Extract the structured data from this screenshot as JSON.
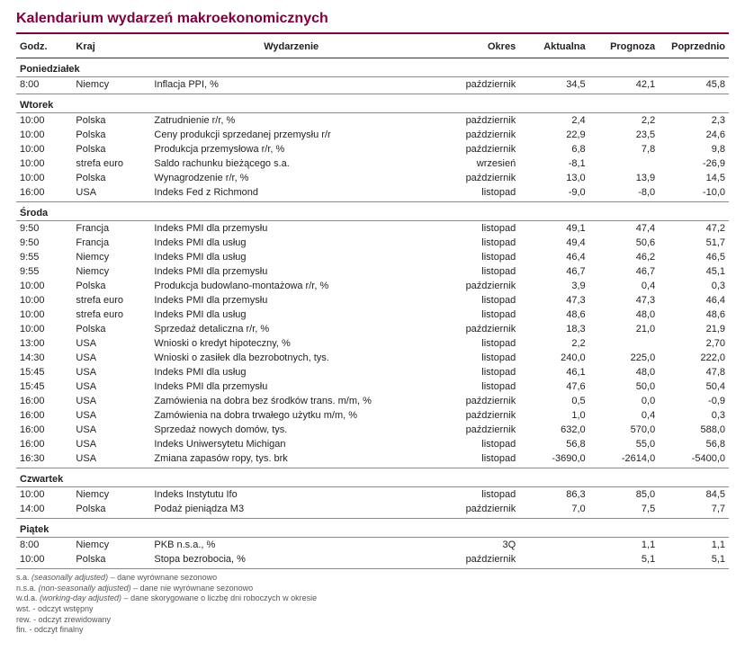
{
  "title": "Kalendarium wydarzeń makroekonomicznych",
  "headers": {
    "hour": "Godz.",
    "country": "Kraj",
    "event": "Wydarzenie",
    "period": "Okres",
    "actual": "Aktualna",
    "forecast": "Prognoza",
    "previous": "Poprzednio"
  },
  "days": [
    {
      "name": "Poniedziałek",
      "rows": [
        {
          "h": "8:00",
          "c": "Niemcy",
          "e": "Inflacja PPI, %",
          "p": "październik",
          "a": "34,5",
          "f": "42,1",
          "pr": "45,8"
        }
      ]
    },
    {
      "name": "Wtorek",
      "rows": [
        {
          "h": "10:00",
          "c": "Polska",
          "e": "Zatrudnienie r/r, %",
          "p": "październik",
          "a": "2,4",
          "f": "2,2",
          "pr": "2,3"
        },
        {
          "h": "10:00",
          "c": "Polska",
          "e": "Ceny produkcji sprzedanej przemysłu r/r",
          "p": "październik",
          "a": "22,9",
          "f": "23,5",
          "pr": "24,6"
        },
        {
          "h": "10:00",
          "c": "Polska",
          "e": "Produkcja przemysłowa r/r, %",
          "p": "październik",
          "a": "6,8",
          "f": "7,8",
          "pr": "9,8"
        },
        {
          "h": "10:00",
          "c": "strefa euro",
          "e": "Saldo rachunku bieżącego s.a.",
          "p": "wrzesień",
          "a": "-8,1",
          "f": "",
          "pr": "-26,9"
        },
        {
          "h": "10:00",
          "c": "Polska",
          "e": "Wynagrodzenie r/r, %",
          "p": "październik",
          "a": "13,0",
          "f": "13,9",
          "pr": "14,5"
        },
        {
          "h": "16:00",
          "c": "USA",
          "e": "Indeks Fed z Richmond",
          "p": "listopad",
          "a": "-9,0",
          "f": "-8,0",
          "pr": "-10,0"
        }
      ]
    },
    {
      "name": "Środa",
      "rows": [
        {
          "h": "9:50",
          "c": "Francja",
          "e": "Indeks PMI dla przemysłu",
          "p": "listopad",
          "a": "49,1",
          "f": "47,4",
          "pr": "47,2"
        },
        {
          "h": "9:50",
          "c": "Francja",
          "e": "Indeks PMI dla usług",
          "p": "listopad",
          "a": "49,4",
          "f": "50,6",
          "pr": "51,7"
        },
        {
          "h": "9:55",
          "c": "Niemcy",
          "e": "Indeks PMI dla usług",
          "p": "listopad",
          "a": "46,4",
          "f": "46,2",
          "pr": "46,5"
        },
        {
          "h": "9:55",
          "c": "Niemcy",
          "e": "Indeks PMI dla przemysłu",
          "p": "listopad",
          "a": "46,7",
          "f": "46,7",
          "pr": "45,1"
        },
        {
          "h": "10:00",
          "c": "Polska",
          "e": "Produkcja budowlano-montażowa r/r, %",
          "p": "październik",
          "a": "3,9",
          "f": "0,4",
          "pr": "0,3"
        },
        {
          "h": "10:00",
          "c": "strefa euro",
          "e": "Indeks PMI dla przemysłu",
          "p": "listopad",
          "a": "47,3",
          "f": "47,3",
          "pr": "46,4"
        },
        {
          "h": "10:00",
          "c": "strefa euro",
          "e": "Indeks PMI dla usług",
          "p": "listopad",
          "a": "48,6",
          "f": "48,0",
          "pr": "48,6"
        },
        {
          "h": "10:00",
          "c": "Polska",
          "e": "Sprzedaż detaliczna r/r, %",
          "p": "październik",
          "a": "18,3",
          "f": "21,0",
          "pr": "21,9"
        },
        {
          "h": "13:00",
          "c": "USA",
          "e": "Wnioski o kredyt hipoteczny, %",
          "p": "listopad",
          "a": "2,2",
          "f": "",
          "pr": "2,70"
        },
        {
          "h": "14:30",
          "c": "USA",
          "e": "Wnioski o zasiłek dla bezrobotnych, tys.",
          "p": "listopad",
          "a": "240,0",
          "f": "225,0",
          "pr": "222,0"
        },
        {
          "h": "15:45",
          "c": "USA",
          "e": "Indeks PMI dla usług",
          "p": "listopad",
          "a": "46,1",
          "f": "48,0",
          "pr": "47,8"
        },
        {
          "h": "15:45",
          "c": "USA",
          "e": "Indeks PMI dla przemysłu",
          "p": "listopad",
          "a": "47,6",
          "f": "50,0",
          "pr": "50,4"
        },
        {
          "h": "16:00",
          "c": "USA",
          "e": "Zamówienia na dobra bez środków trans. m/m, %",
          "p": "październik",
          "a": "0,5",
          "f": "0,0",
          "pr": "-0,9"
        },
        {
          "h": "16:00",
          "c": "USA",
          "e": "Zamówienia na dobra trwałego użytku m/m, %",
          "p": "październik",
          "a": "1,0",
          "f": "0,4",
          "pr": "0,3"
        },
        {
          "h": "16:00",
          "c": "USA",
          "e": "Sprzedaż nowych domów, tys.",
          "p": "październik",
          "a": "632,0",
          "f": "570,0",
          "pr": "588,0"
        },
        {
          "h": "16:00",
          "c": "USA",
          "e": "Indeks Uniwersytetu Michigan",
          "p": "listopad",
          "a": "56,8",
          "f": "55,0",
          "pr": "56,8"
        },
        {
          "h": "16:30",
          "c": "USA",
          "e": "Zmiana zapasów ropy, tys. brk",
          "p": "listopad",
          "a": "-3690,0",
          "f": "-2614,0",
          "pr": "-5400,0"
        }
      ]
    },
    {
      "name": "Czwartek",
      "rows": [
        {
          "h": "10:00",
          "c": "Niemcy",
          "e": "Indeks Instytutu Ifo",
          "p": "listopad",
          "a": "86,3",
          "f": "85,0",
          "pr": "84,5"
        },
        {
          "h": "14:00",
          "c": "Polska",
          "e": "Podaż pieniądza M3",
          "p": "październik",
          "a": "7,0",
          "f": "7,5",
          "pr": "7,7"
        }
      ]
    },
    {
      "name": "Piątek",
      "rows": [
        {
          "h": "8:00",
          "c": "Niemcy",
          "e": "PKB n.s.a., %",
          "p": "3Q",
          "a": "",
          "f": "1,1",
          "pr": "1,1"
        },
        {
          "h": "10:00",
          "c": "Polska",
          "e": "Stopa bezrobocia, %",
          "p": "październik",
          "a": "",
          "f": "5,1",
          "pr": "5,1"
        }
      ]
    }
  ],
  "footnotes": [
    {
      "abbr": "s.a.",
      "em": "(seasonally adjusted)",
      "txt": " – dane wyrównane sezonowo"
    },
    {
      "abbr": "n.s.a.",
      "em": "(non-seasonally adjusted)",
      "txt": " – dane nie wyrównane sezonowo"
    },
    {
      "abbr": "w.d.a.",
      "em": "(working-day adjusted)",
      "txt": " – dane skorygowane o liczbę dni roboczych w okresie"
    },
    {
      "abbr": "wst.",
      "em": "",
      "txt": " - odczyt wstępny"
    },
    {
      "abbr": "rew.",
      "em": "",
      "txt": " - odczyt zrewidowany"
    },
    {
      "abbr": "fin.",
      "em": "",
      "txt": " - odczyt finalny"
    }
  ]
}
